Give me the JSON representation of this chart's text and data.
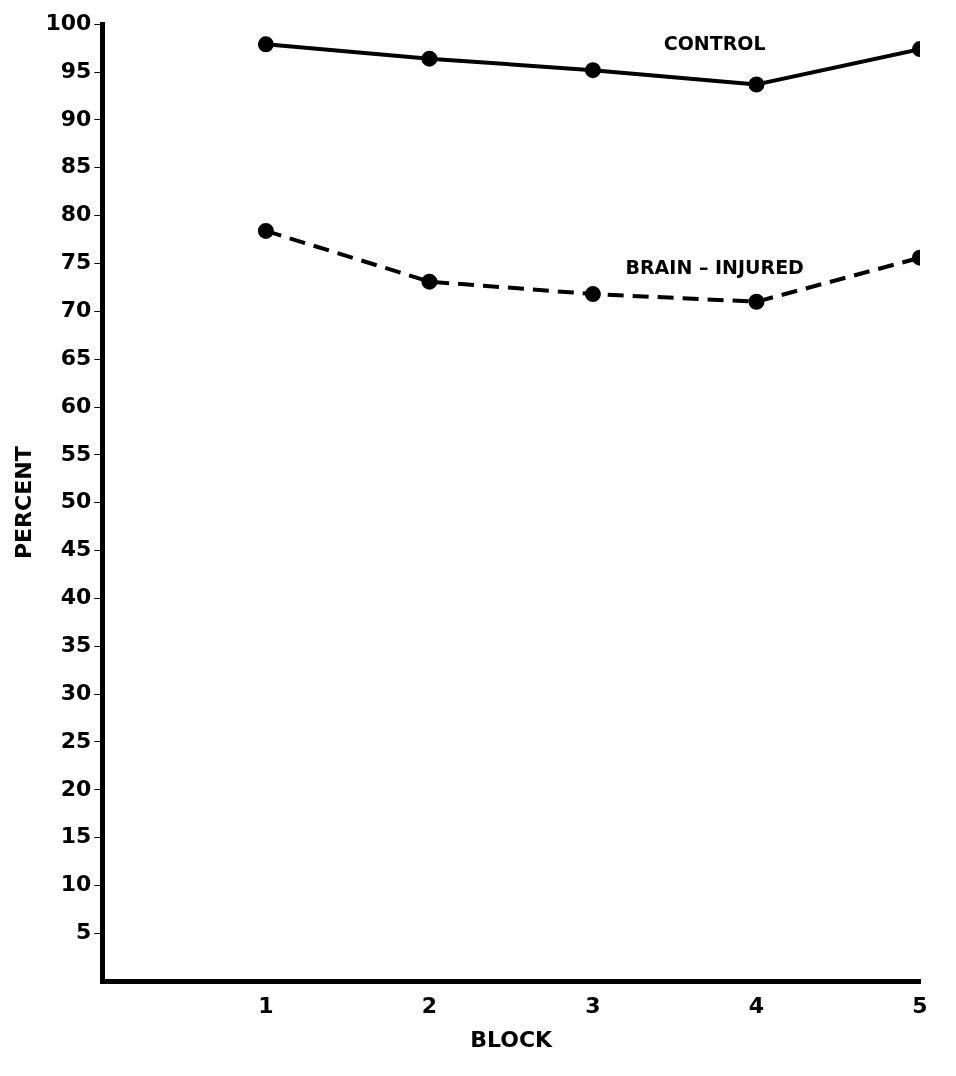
{
  "chart_data": {
    "type": "line",
    "xlabel": "BLOCK",
    "ylabel": "PERCENT",
    "x": [
      1,
      2,
      3,
      4,
      5
    ],
    "series": [
      {
        "name": "CONTROL",
        "color": "#000000",
        "line_style": "solid",
        "values": [
          97.9,
          96.4,
          95.2,
          93.7,
          97.4
        ]
      },
      {
        "name": "BRAIN – INJURED",
        "color": "#000000",
        "line_style": "dashed",
        "values": [
          78.4,
          73.1,
          71.8,
          71.0,
          75.6
        ]
      }
    ],
    "xlim": [
      0,
      5
    ],
    "xticks": [
      1,
      2,
      3,
      4,
      5
    ],
    "ylim": [
      0,
      100
    ],
    "yticks": [
      5,
      10,
      15,
      20,
      25,
      30,
      35,
      40,
      45,
      50,
      55,
      60,
      65,
      70,
      75,
      80,
      85,
      90,
      95,
      100
    ],
    "marker": "circle",
    "grid": false,
    "legend": false
  }
}
